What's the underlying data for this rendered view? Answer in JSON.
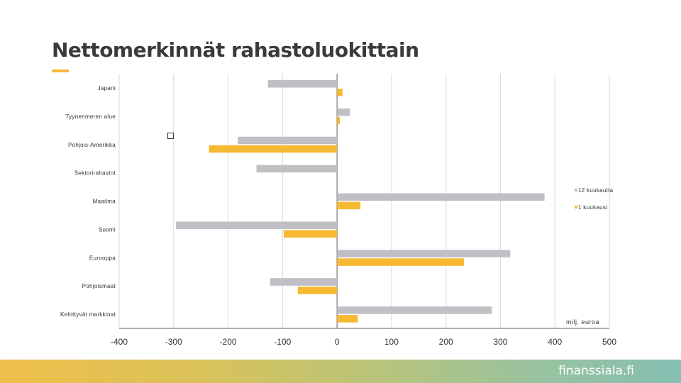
{
  "page": {
    "title": "Nettomerkinnät rahastoluokittain",
    "brand": "finanssiala.fi",
    "unit": "milj. euroa"
  },
  "colors": {
    "series_12m": "#bfbfc4",
    "series_1m": "#f5b932",
    "grid": "#d9d9d9",
    "axis": "#595959",
    "text": "#333333"
  },
  "chart_data": {
    "type": "bar",
    "orientation": "horizontal",
    "categories": [
      "Japani",
      "Tyynenmeren alue",
      "Pohjois-Amerikka",
      "Sektorirahastot",
      "Maailma",
      "Suomi",
      "Eurooppa",
      "Pohjoismaat",
      "Kehittyvät markkinat"
    ],
    "series": [
      {
        "name": "12 kuukautta",
        "values": [
          -127,
          24,
          -182,
          -148,
          381,
          -296,
          318,
          -123,
          284
        ]
      },
      {
        "name": "1 kuukausi",
        "values": [
          10,
          5,
          -235,
          0,
          43,
          -98,
          233,
          -72,
          38
        ]
      }
    ],
    "xlim": [
      -400,
      500
    ],
    "xticks": [
      "-400",
      "-300",
      "-200",
      "-100",
      "0",
      "100",
      "200",
      "300",
      "400",
      "500"
    ],
    "grid": true,
    "legend_position": "right"
  }
}
